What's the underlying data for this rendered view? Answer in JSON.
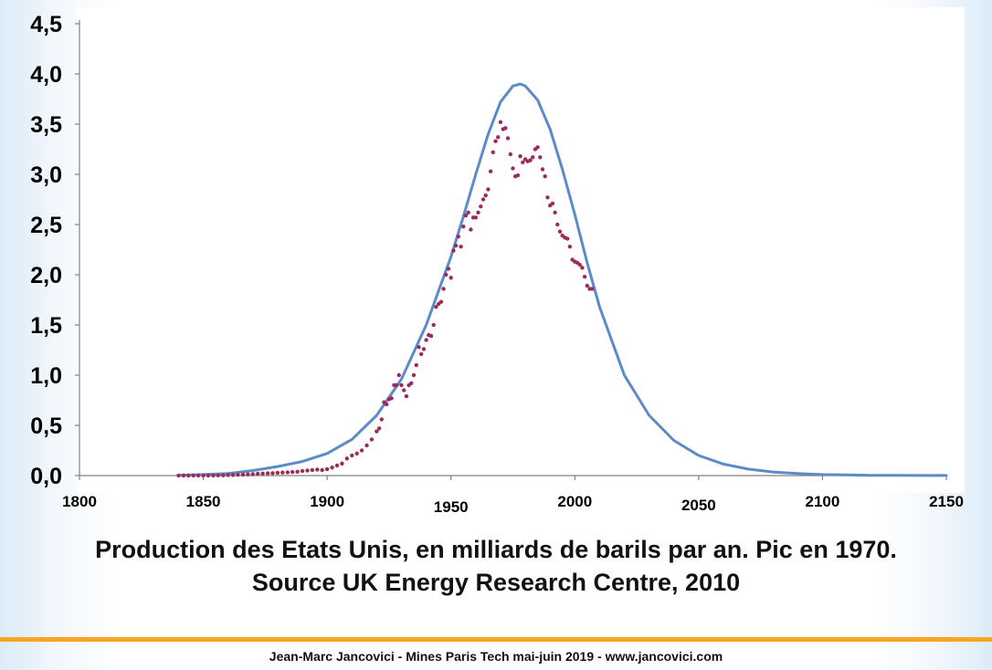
{
  "chart_data": {
    "type": "line",
    "title": "",
    "xlabel": "",
    "ylabel": "",
    "xlim": [
      1800,
      2150
    ],
    "ylim": [
      0,
      4.5
    ],
    "x_ticks": [
      "1800",
      "1850",
      "1900",
      "1950",
      "2000",
      "2050",
      "2100",
      "2150"
    ],
    "y_ticks": [
      "0,0",
      "0,5",
      "1,0",
      "1,5",
      "2,0",
      "2,5",
      "3,0",
      "3,5",
      "4,0",
      "4,5"
    ],
    "grid": false,
    "legend": "none",
    "series": [
      {
        "style": "line",
        "color": "#5b8bc9",
        "x": [
          1840,
          1850,
          1860,
          1870,
          1880,
          1890,
          1900,
          1910,
          1920,
          1930,
          1940,
          1950,
          1955,
          1960,
          1965,
          1970,
          1975,
          1978,
          1980,
          1985,
          1990,
          1995,
          2000,
          2005,
          2010,
          2020,
          2030,
          2040,
          2050,
          2060,
          2070,
          2080,
          2090,
          2100,
          2110,
          2120,
          2130,
          2140,
          2150
        ],
        "y": [
          0.004,
          0.01,
          0.02,
          0.05,
          0.09,
          0.14,
          0.22,
          0.36,
          0.6,
          0.96,
          1.5,
          2.18,
          2.58,
          3.0,
          3.4,
          3.72,
          3.88,
          3.9,
          3.88,
          3.74,
          3.45,
          3.05,
          2.6,
          2.12,
          1.68,
          1.0,
          0.6,
          0.35,
          0.2,
          0.115,
          0.065,
          0.035,
          0.02,
          0.01,
          0.006,
          0.003,
          0.002,
          0.001,
          0.0005
        ]
      },
      {
        "style": "scatter",
        "color": "#9b2c5a",
        "x": [
          1840,
          1842,
          1844,
          1846,
          1848,
          1850,
          1852,
          1854,
          1856,
          1858,
          1860,
          1862,
          1864,
          1866,
          1868,
          1870,
          1872,
          1874,
          1876,
          1878,
          1880,
          1882,
          1884,
          1886,
          1888,
          1890,
          1892,
          1894,
          1896,
          1898,
          1900,
          1902,
          1904,
          1906,
          1908,
          1910,
          1912,
          1914,
          1916,
          1918,
          1920,
          1921,
          1922,
          1923,
          1924,
          1925,
          1926,
          1927,
          1928,
          1929,
          1930,
          1931,
          1932,
          1933,
          1934,
          1935,
          1936,
          1937,
          1938,
          1939,
          1940,
          1941,
          1942,
          1943,
          1944,
          1945,
          1946,
          1947,
          1948,
          1949,
          1950,
          1951,
          1952,
          1953,
          1954,
          1955,
          1956,
          1957,
          1958,
          1959,
          1960,
          1961,
          1962,
          1963,
          1964,
          1965,
          1966,
          1967,
          1968,
          1969,
          1970,
          1971,
          1972,
          1973,
          1974,
          1975,
          1976,
          1977,
          1978,
          1979,
          1980,
          1981,
          1982,
          1983,
          1984,
          1985,
          1986,
          1987,
          1988,
          1989,
          1990,
          1991,
          1992,
          1993,
          1994,
          1995,
          1996,
          1997,
          1998,
          1999,
          2000,
          2001,
          2002,
          2003,
          2004,
          2005,
          2006,
          2007
        ],
        "y": [
          0.0,
          0.0,
          0.0,
          0.0,
          0.001,
          0.001,
          0.001,
          0.001,
          0.002,
          0.003,
          0.005,
          0.006,
          0.008,
          0.01,
          0.012,
          0.015,
          0.018,
          0.02,
          0.023,
          0.025,
          0.028,
          0.03,
          0.032,
          0.035,
          0.038,
          0.045,
          0.05,
          0.055,
          0.06,
          0.055,
          0.065,
          0.08,
          0.1,
          0.12,
          0.17,
          0.2,
          0.22,
          0.25,
          0.3,
          0.36,
          0.44,
          0.47,
          0.56,
          0.73,
          0.71,
          0.76,
          0.77,
          0.9,
          0.9,
          1.0,
          0.9,
          0.85,
          0.79,
          0.9,
          0.92,
          1.0,
          1.1,
          1.28,
          1.21,
          1.26,
          1.35,
          1.4,
          1.39,
          1.5,
          1.68,
          1.71,
          1.73,
          1.86,
          2.0,
          2.06,
          1.97,
          2.24,
          2.29,
          2.38,
          2.28,
          2.48,
          2.59,
          2.62,
          2.45,
          2.57,
          2.57,
          2.62,
          2.68,
          2.75,
          2.79,
          2.85,
          3.03,
          3.22,
          3.33,
          3.37,
          3.52,
          3.45,
          3.46,
          3.36,
          3.2,
          3.06,
          2.98,
          2.99,
          3.18,
          3.12,
          3.15,
          3.13,
          3.14,
          3.17,
          3.25,
          3.27,
          3.17,
          3.05,
          2.98,
          2.77,
          2.69,
          2.71,
          2.62,
          2.5,
          2.43,
          2.39,
          2.37,
          2.36,
          2.28,
          2.15,
          2.13,
          2.12,
          2.1,
          2.07,
          1.98,
          1.89,
          1.86,
          1.86
        ]
      }
    ]
  },
  "caption": {
    "line1": "Production des Etats Unis, en milliards de barils par an. Pic en 1970.",
    "line2": "Source UK Energy Research Centre, 2010"
  },
  "footer": {
    "text": "Jean-Marc Jancovici - Mines Paris Tech mai-juin 2019 - www.jancovici.com"
  },
  "colors": {
    "accent_rule": "#f5a623",
    "fit_line": "#5b8bc9",
    "data_points": "#9b2c5a"
  }
}
